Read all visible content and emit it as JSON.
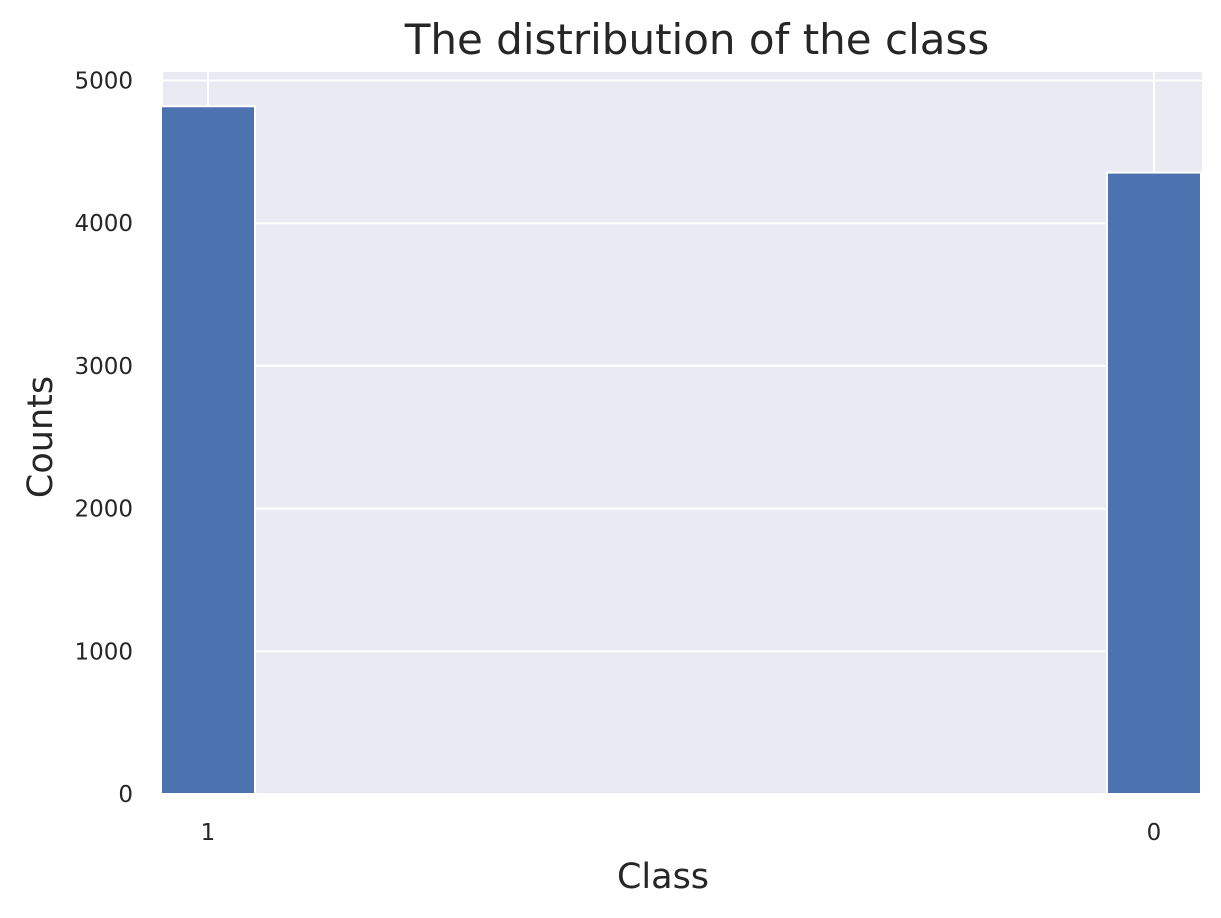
{
  "chart_data": {
    "type": "bar",
    "title": "The distribution of the class",
    "xlabel": "Class",
    "ylabel": "Counts",
    "categories": [
      "1",
      "0"
    ],
    "values": [
      4820,
      4355
    ],
    "ylim": [
      0,
      5060
    ],
    "yticks": [
      0,
      1000,
      2000,
      3000,
      4000,
      5000
    ],
    "grid": true,
    "legend": "none",
    "colors": {
      "bar": "#4c72b0",
      "plot_background": "#eaeaf2",
      "grid": "#ffffff",
      "text": "#262626"
    }
  }
}
